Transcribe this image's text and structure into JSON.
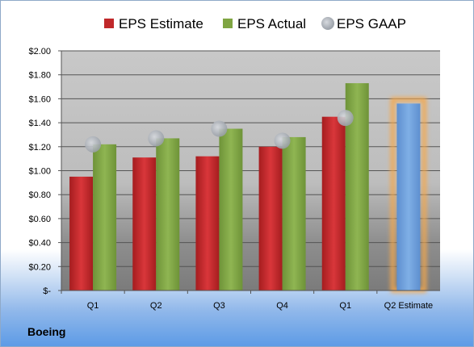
{
  "chart_data": {
    "type": "bar",
    "title": "",
    "xlabel": "",
    "ylabel": "",
    "ylim": [
      0,
      2.0
    ],
    "yticks": [
      0,
      0.2,
      0.4,
      0.6,
      0.8,
      1.0,
      1.2,
      1.4,
      1.6,
      1.8,
      2.0
    ],
    "ytick_labels": [
      "$-",
      "$0.20",
      "$0.40",
      "$0.60",
      "$0.80",
      "$1.00",
      "$1.20",
      "$1.40",
      "$1.60",
      "$1.80",
      "$2.00"
    ],
    "categories": [
      "Q1",
      "Q2",
      "Q3",
      "Q4",
      "Q1",
      "Q2 Estimate"
    ],
    "grid": true,
    "legend_position": "top",
    "series": [
      {
        "name": "EPS Estimate",
        "kind": "bar",
        "color": "#c0282a",
        "values": [
          0.95,
          1.11,
          1.12,
          1.2,
          1.45,
          null
        ]
      },
      {
        "name": "EPS Actual",
        "kind": "bar",
        "color": "#7fa542",
        "values": [
          1.22,
          1.27,
          1.35,
          1.28,
          1.73,
          null
        ]
      },
      {
        "name": "EPS GAAP",
        "kind": "marker",
        "color": "#b4b9c2",
        "values": [
          1.22,
          1.27,
          1.35,
          1.25,
          1.44,
          null
        ]
      }
    ],
    "highlight": {
      "category_index": 5,
      "value": 1.56,
      "color": "#6f9fd8",
      "glow": "#f5a84b"
    }
  },
  "footer": {
    "company": "Boeing"
  }
}
